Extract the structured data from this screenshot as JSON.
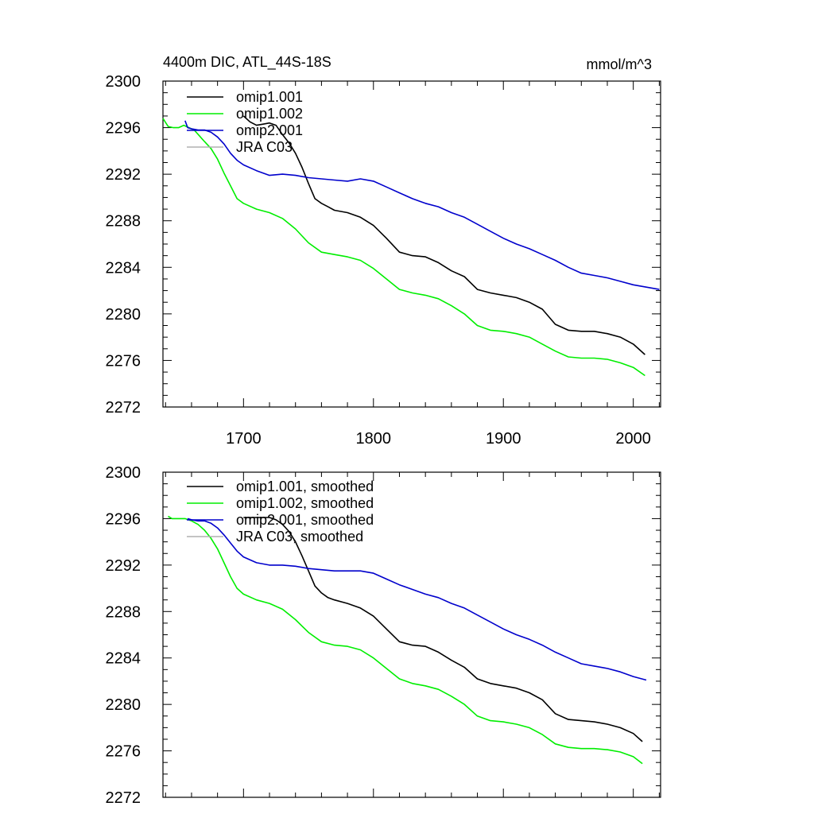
{
  "figure": {
    "title_left": "4400m DIC, ATL_44S-18S",
    "title_right": "mmol/m^3"
  },
  "colors": {
    "omip1_001": "#000000",
    "omip1_002": "#00ee00",
    "omip2_001": "#0000cc",
    "jra_c03": "#b0b0b0"
  },
  "chart_data": [
    {
      "type": "line",
      "title": "4400m DIC, ATL_44S-18S",
      "units_label": "mmol/m^3",
      "xlim": [
        1638,
        2021
      ],
      "ylim": [
        2272,
        2300
      ],
      "x_ticks": [
        1700,
        1800,
        1900,
        2000
      ],
      "x_tick_labels": [
        "1700",
        "1800",
        "1900",
        "2000"
      ],
      "y_ticks": [
        2272,
        2276,
        2280,
        2284,
        2288,
        2292,
        2296,
        2300
      ],
      "y_tick_labels": [
        "2272",
        "2276",
        "2280",
        "2284",
        "2288",
        "2292",
        "2296",
        "2300"
      ],
      "legend_position": "top-left",
      "grid": false,
      "series": [
        {
          "name": "omip1.001",
          "color": "#000000",
          "x": [
            1700,
            1705,
            1710,
            1715,
            1720,
            1725,
            1730,
            1735,
            1740,
            1745,
            1750,
            1755,
            1760,
            1765,
            1770,
            1780,
            1790,
            1800,
            1810,
            1820,
            1830,
            1840,
            1850,
            1860,
            1870,
            1880,
            1890,
            1900,
            1910,
            1920,
            1930,
            1940,
            1950,
            1960,
            1970,
            1980,
            1990,
            2000,
            2009
          ],
          "y": [
            2297.0,
            2296.5,
            2296.2,
            2296.3,
            2296.4,
            2296.2,
            2295.4,
            2294.7,
            2293.8,
            2292.6,
            2291.2,
            2289.9,
            2289.5,
            2289.2,
            2288.9,
            2288.7,
            2288.3,
            2287.6,
            2286.5,
            2285.3,
            2285.0,
            2284.9,
            2284.4,
            2283.7,
            2283.2,
            2282.1,
            2281.8,
            2281.6,
            2281.4,
            2281.0,
            2280.4,
            2279.1,
            2278.6,
            2278.5,
            2278.5,
            2278.3,
            2278.0,
            2277.4,
            2276.5
          ]
        },
        {
          "name": "omip1.002",
          "color": "#00ee00",
          "x": [
            1638,
            1642,
            1646,
            1650,
            1654,
            1658,
            1662,
            1666,
            1670,
            1675,
            1680,
            1685,
            1690,
            1695,
            1700,
            1710,
            1720,
            1730,
            1740,
            1750,
            1760,
            1770,
            1780,
            1790,
            1800,
            1810,
            1820,
            1830,
            1840,
            1850,
            1860,
            1870,
            1880,
            1890,
            1900,
            1910,
            1920,
            1930,
            1940,
            1950,
            1960,
            1970,
            1980,
            1990,
            2000,
            2009
          ],
          "y": [
            2296.8,
            2296.1,
            2296.0,
            2296.0,
            2296.2,
            2296.0,
            2295.8,
            2295.3,
            2294.8,
            2294.2,
            2293.3,
            2292.1,
            2291.0,
            2289.9,
            2289.5,
            2289.0,
            2288.7,
            2288.2,
            2287.3,
            2286.1,
            2285.3,
            2285.1,
            2284.9,
            2284.6,
            2283.9,
            2283.0,
            2282.1,
            2281.8,
            2281.6,
            2281.3,
            2280.7,
            2280.0,
            2279.0,
            2278.6,
            2278.5,
            2278.3,
            2278.0,
            2277.4,
            2276.8,
            2276.3,
            2276.2,
            2276.2,
            2276.1,
            2275.8,
            2275.4,
            2274.7
          ]
        },
        {
          "name": "omip2.001",
          "color": "#0000cc",
          "x": [
            1655,
            1657,
            1660,
            1665,
            1670,
            1675,
            1680,
            1685,
            1690,
            1695,
            1700,
            1710,
            1720,
            1730,
            1740,
            1750,
            1760,
            1770,
            1780,
            1790,
            1800,
            1810,
            1820,
            1830,
            1840,
            1850,
            1860,
            1870,
            1880,
            1890,
            1900,
            1910,
            1920,
            1930,
            1940,
            1950,
            1960,
            1970,
            1980,
            1990,
            2000,
            2010,
            2020
          ],
          "y": [
            2296.6,
            2296.0,
            2295.9,
            2295.8,
            2295.8,
            2295.6,
            2295.2,
            2294.6,
            2293.8,
            2293.2,
            2292.8,
            2292.3,
            2291.9,
            2292.0,
            2291.9,
            2291.7,
            2291.6,
            2291.5,
            2291.4,
            2291.6,
            2291.4,
            2290.9,
            2290.4,
            2289.9,
            2289.5,
            2289.2,
            2288.7,
            2288.3,
            2287.7,
            2287.1,
            2286.5,
            2286.0,
            2285.6,
            2285.1,
            2284.6,
            2284.0,
            2283.5,
            2283.3,
            2283.1,
            2282.8,
            2282.5,
            2282.3,
            2282.1
          ]
        },
        {
          "name": "JRA C03",
          "color": "#b0b0b0",
          "x": [],
          "y": []
        }
      ]
    },
    {
      "type": "line",
      "title": "",
      "xlim": [
        1638,
        2021
      ],
      "ylim": [
        2272,
        2300
      ],
      "x_ticks": [
        1700,
        1800,
        1900,
        2000
      ],
      "x_tick_labels": [],
      "y_ticks": [
        2272,
        2276,
        2280,
        2284,
        2288,
        2292,
        2296,
        2300
      ],
      "y_tick_labels": [
        "2272",
        "2276",
        "2280",
        "2284",
        "2288",
        "2292",
        "2296",
        "2300"
      ],
      "legend_position": "top-left",
      "grid": false,
      "series": [
        {
          "name": "omip1.001, smoothed",
          "color": "#000000",
          "x": [
            1700,
            1705,
            1710,
            1715,
            1720,
            1725,
            1730,
            1735,
            1740,
            1745,
            1750,
            1755,
            1760,
            1765,
            1770,
            1780,
            1790,
            1800,
            1810,
            1820,
            1830,
            1840,
            1850,
            1860,
            1870,
            1880,
            1890,
            1900,
            1910,
            1920,
            1930,
            1940,
            1950,
            1960,
            1970,
            1980,
            1990,
            2000,
            2007
          ],
          "y": [
            2296.1,
            2296.1,
            2296.1,
            2296.1,
            2296.1,
            2295.9,
            2295.5,
            2294.9,
            2294.0,
            2292.8,
            2291.5,
            2290.2,
            2289.6,
            2289.2,
            2289.0,
            2288.7,
            2288.3,
            2287.6,
            2286.5,
            2285.4,
            2285.1,
            2285.0,
            2284.5,
            2283.8,
            2283.2,
            2282.2,
            2281.8,
            2281.6,
            2281.4,
            2281.0,
            2280.4,
            2279.2,
            2278.7,
            2278.6,
            2278.5,
            2278.3,
            2278.0,
            2277.5,
            2276.8
          ]
        },
        {
          "name": "omip1.002, smoothed",
          "color": "#00ee00",
          "x": [
            1642,
            1645,
            1650,
            1655,
            1660,
            1665,
            1670,
            1675,
            1680,
            1685,
            1690,
            1695,
            1700,
            1710,
            1720,
            1730,
            1740,
            1750,
            1760,
            1770,
            1780,
            1790,
            1800,
            1810,
            1820,
            1830,
            1840,
            1850,
            1860,
            1870,
            1880,
            1890,
            1900,
            1910,
            1920,
            1930,
            1940,
            1950,
            1960,
            1970,
            1980,
            1990,
            2000,
            2007
          ],
          "y": [
            2296.2,
            2296.0,
            2296.0,
            2296.0,
            2295.8,
            2295.5,
            2295.0,
            2294.3,
            2293.4,
            2292.2,
            2291.0,
            2290.0,
            2289.5,
            2289.0,
            2288.7,
            2288.2,
            2287.3,
            2286.2,
            2285.4,
            2285.1,
            2285.0,
            2284.7,
            2284.0,
            2283.1,
            2282.2,
            2281.8,
            2281.6,
            2281.3,
            2280.7,
            2280.0,
            2279.0,
            2278.6,
            2278.5,
            2278.3,
            2278.0,
            2277.4,
            2276.6,
            2276.3,
            2276.2,
            2276.2,
            2276.1,
            2275.9,
            2275.5,
            2274.9
          ]
        },
        {
          "name": "omip2.001, smoothed",
          "color": "#0000cc",
          "x": [
            1657,
            1660,
            1665,
            1670,
            1675,
            1680,
            1685,
            1690,
            1695,
            1700,
            1710,
            1720,
            1730,
            1740,
            1750,
            1760,
            1770,
            1780,
            1790,
            1800,
            1810,
            1820,
            1830,
            1840,
            1850,
            1860,
            1870,
            1880,
            1890,
            1900,
            1910,
            1920,
            1930,
            1940,
            1950,
            1960,
            1970,
            1980,
            1990,
            2000,
            2010
          ],
          "y": [
            2296.0,
            2295.9,
            2295.8,
            2295.8,
            2295.6,
            2295.2,
            2294.6,
            2293.9,
            2293.2,
            2292.7,
            2292.2,
            2292.0,
            2292.0,
            2291.9,
            2291.7,
            2291.6,
            2291.5,
            2291.5,
            2291.5,
            2291.3,
            2290.8,
            2290.3,
            2289.9,
            2289.5,
            2289.2,
            2288.7,
            2288.3,
            2287.7,
            2287.1,
            2286.5,
            2286.0,
            2285.6,
            2285.1,
            2284.5,
            2284.0,
            2283.5,
            2283.3,
            2283.1,
            2282.8,
            2282.4,
            2282.1
          ]
        },
        {
          "name": "JRA C03, smoothed",
          "color": "#b0b0b0",
          "x": [],
          "y": []
        }
      ]
    }
  ]
}
